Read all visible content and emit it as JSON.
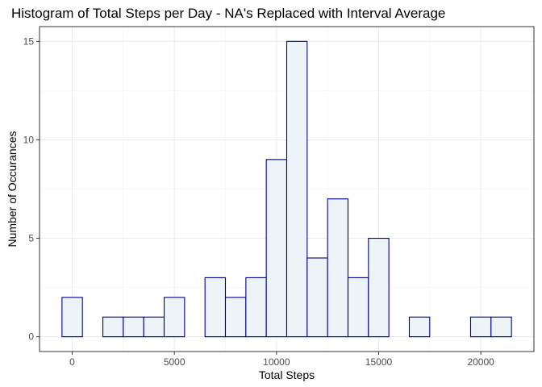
{
  "chart_data": {
    "type": "bar",
    "title": "Histogram of Total Steps per Day - NA's Replaced with Interval Average",
    "xlabel": "Total Steps",
    "ylabel": "Number of Occurances",
    "bin_width": 1000,
    "bins": [
      {
        "center": 0,
        "count": 2
      },
      {
        "center": 1000,
        "count": 0
      },
      {
        "center": 2000,
        "count": 1
      },
      {
        "center": 3000,
        "count": 1
      },
      {
        "center": 4000,
        "count": 1
      },
      {
        "center": 5000,
        "count": 2
      },
      {
        "center": 6000,
        "count": 0
      },
      {
        "center": 7000,
        "count": 3
      },
      {
        "center": 8000,
        "count": 2
      },
      {
        "center": 9000,
        "count": 3
      },
      {
        "center": 10000,
        "count": 9
      },
      {
        "center": 11000,
        "count": 15
      },
      {
        "center": 12000,
        "count": 4
      },
      {
        "center": 13000,
        "count": 7
      },
      {
        "center": 14000,
        "count": 3
      },
      {
        "center": 15000,
        "count": 5
      },
      {
        "center": 16000,
        "count": 0
      },
      {
        "center": 17000,
        "count": 1
      },
      {
        "center": 18000,
        "count": 0
      },
      {
        "center": 19000,
        "count": 0
      },
      {
        "center": 20000,
        "count": 1
      },
      {
        "center": 21000,
        "count": 1
      }
    ],
    "xlim": [
      -1600,
      22600
    ],
    "ylim": [
      -0.75,
      15.75
    ],
    "x_ticks": [
      0,
      5000,
      10000,
      15000,
      20000
    ],
    "x_tick_labels": [
      "0",
      "5000",
      "10000",
      "15000",
      "20000"
    ],
    "y_ticks": [
      0,
      5,
      10,
      15
    ],
    "y_tick_labels": [
      "0",
      "5",
      "10",
      "15"
    ],
    "bar_fill": "#edf4f8",
    "bar_outline": "#00008b",
    "grid": true,
    "legend": "none"
  }
}
